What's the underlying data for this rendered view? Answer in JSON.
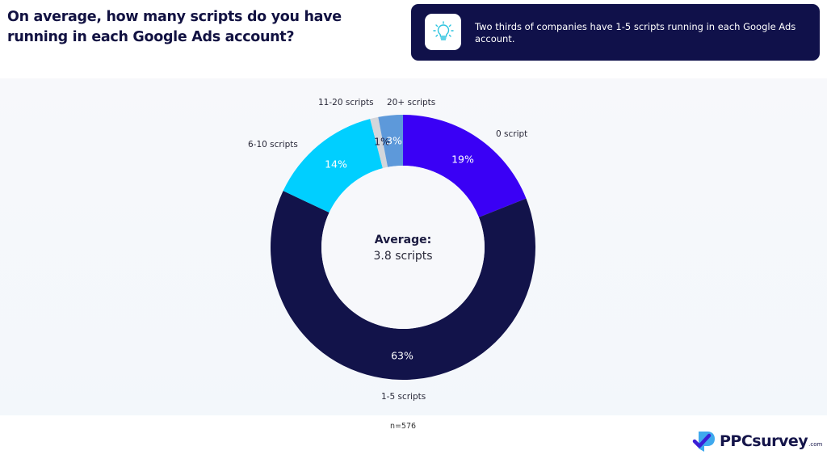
{
  "header": {
    "title": "On average, how many scripts do you have running in each Google Ads account?"
  },
  "insight": {
    "icon": "lightbulb-icon",
    "text": "Two thirds of companies have 1-5 scripts running in each Google Ads account."
  },
  "center": {
    "label": "Average:",
    "value": "3.8 scripts"
  },
  "footer": {
    "sample_size": "n=576",
    "brand": "PPCsurvey",
    "brand_suffix": ".com"
  },
  "colors": {
    "0 script": "#3a00f5",
    "1-5 scripts": "#12134a",
    "6-10 scripts": "#00cfff",
    "11-20 scripts": "#d3d6db",
    "20+ scripts": "#5d99da"
  },
  "chart_data": {
    "type": "pie",
    "subtype": "donut",
    "title": "On average, how many scripts do you have running in each Google Ads account?",
    "categories": [
      "0 script",
      "1-5 scripts",
      "6-10 scripts",
      "11-20 scripts",
      "20+ scripts"
    ],
    "values": [
      19,
      63,
      14,
      1,
      3
    ],
    "value_labels": [
      "19%",
      "63%",
      "14%",
      "1%",
      "3%"
    ],
    "unit": "%",
    "start_angle_deg": 0,
    "direction": "clockwise",
    "center_annotation": "Average: 3.8 scripts",
    "note": "n=576",
    "legend": "none (direct category labels)"
  }
}
